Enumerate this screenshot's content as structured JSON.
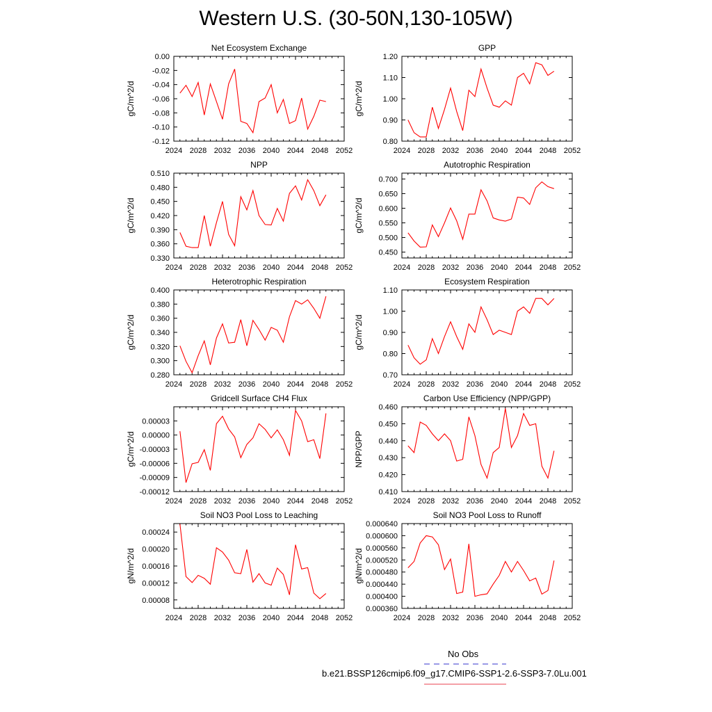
{
  "title": "Western U.S. (30-50N,130-105W)",
  "chart_data": [
    {
      "type": "line",
      "title": "Net Ecosystem Exchange",
      "ylabel": "gC/m^2/d",
      "xlim": [
        2024,
        2052
      ],
      "ylim": [
        -0.12,
        0.0
      ],
      "xticks": [
        "2024",
        "2028",
        "2032",
        "2036",
        "2040",
        "2044",
        "2048",
        "2052"
      ],
      "yticks": [
        "-0.12",
        "-0.10",
        "-0.08",
        "-0.06",
        "-0.04",
        "-0.02",
        "0.00"
      ],
      "x": [
        2025,
        2026,
        2027,
        2028,
        2029,
        2030,
        2031,
        2032,
        2033,
        2034,
        2035,
        2036,
        2037,
        2038,
        2039,
        2040,
        2041,
        2042,
        2043,
        2044,
        2045,
        2046,
        2047,
        2048,
        2049
      ],
      "series": [
        {
          "values": [
            -0.052,
            -0.041,
            -0.057,
            -0.037,
            -0.083,
            -0.039,
            -0.064,
            -0.089,
            -0.039,
            -0.018,
            -0.092,
            -0.095,
            -0.108,
            -0.064,
            -0.059,
            -0.04,
            -0.08,
            -0.061,
            -0.095,
            -0.091,
            -0.059,
            -0.103,
            -0.085,
            -0.062,
            -0.064
          ]
        }
      ]
    },
    {
      "type": "line",
      "title": "GPP",
      "ylabel": "gC/m^2/d",
      "xlim": [
        2024,
        2052
      ],
      "ylim": [
        0.8,
        1.2
      ],
      "xticks": [
        "2024",
        "2028",
        "2032",
        "2036",
        "2040",
        "2044",
        "2048",
        "2052"
      ],
      "yticks": [
        "0.80",
        "0.90",
        "1.00",
        "1.10",
        "1.20"
      ],
      "x": [
        2025,
        2026,
        2027,
        2028,
        2029,
        2030,
        2031,
        2032,
        2033,
        2034,
        2035,
        2036,
        2037,
        2038,
        2039,
        2040,
        2041,
        2042,
        2043,
        2044,
        2045,
        2046,
        2047,
        2048,
        2049
      ],
      "series": [
        {
          "values": [
            0.9,
            0.84,
            0.82,
            0.82,
            0.96,
            0.86,
            0.95,
            1.05,
            0.94,
            0.85,
            1.04,
            1.01,
            1.14,
            1.05,
            0.97,
            0.96,
            0.99,
            0.97,
            1.1,
            1.12,
            1.07,
            1.17,
            1.16,
            1.11,
            1.13
          ]
        }
      ]
    },
    {
      "type": "line",
      "title": "NPP",
      "ylabel": "gC/m^2/d",
      "xlim": [
        2024,
        2052
      ],
      "ylim": [
        0.33,
        0.51
      ],
      "xticks": [
        "2024",
        "2028",
        "2032",
        "2036",
        "2040",
        "2044",
        "2048",
        "2052"
      ],
      "yticks": [
        "0.330",
        "0.360",
        "0.390",
        "0.420",
        "0.450",
        "0.480",
        "0.510"
      ],
      "x": [
        2025,
        2026,
        2027,
        2028,
        2029,
        2030,
        2031,
        2032,
        2033,
        2034,
        2035,
        2036,
        2037,
        2038,
        2039,
        2040,
        2041,
        2042,
        2043,
        2044,
        2045,
        2046,
        2047,
        2048,
        2049
      ],
      "series": [
        {
          "values": [
            0.384,
            0.355,
            0.352,
            0.352,
            0.42,
            0.355,
            0.405,
            0.45,
            0.38,
            0.356,
            0.46,
            0.432,
            0.473,
            0.42,
            0.401,
            0.4,
            0.435,
            0.408,
            0.467,
            0.483,
            0.453,
            0.496,
            0.473,
            0.441,
            0.464
          ]
        }
      ]
    },
    {
      "type": "line",
      "title": "Autotrophic Respiration",
      "ylabel": "gC/m^2/d",
      "xlim": [
        2024,
        2052
      ],
      "ylim": [
        0.43,
        0.72
      ],
      "xticks": [
        "2024",
        "2028",
        "2032",
        "2036",
        "2040",
        "2044",
        "2048",
        "2052"
      ],
      "yticks": [
        "0.450",
        "0.500",
        "0.550",
        "0.600",
        "0.650",
        "0.700"
      ],
      "x": [
        2025,
        2026,
        2027,
        2028,
        2029,
        2030,
        2031,
        2032,
        2033,
        2034,
        2035,
        2036,
        2037,
        2038,
        2039,
        2040,
        2041,
        2042,
        2043,
        2044,
        2045,
        2046,
        2047,
        2048,
        2049
      ],
      "series": [
        {
          "values": [
            0.516,
            0.488,
            0.467,
            0.468,
            0.543,
            0.503,
            0.55,
            0.601,
            0.557,
            0.494,
            0.58,
            0.58,
            0.663,
            0.625,
            0.567,
            0.56,
            0.556,
            0.563,
            0.638,
            0.635,
            0.613,
            0.67,
            0.69,
            0.674,
            0.667
          ]
        }
      ]
    },
    {
      "type": "line",
      "title": "Heterotrophic Respiration",
      "ylabel": "gC/m^2/d",
      "xlim": [
        2024,
        2052
      ],
      "ylim": [
        0.28,
        0.4
      ],
      "xticks": [
        "2024",
        "2028",
        "2032",
        "2036",
        "2040",
        "2044",
        "2048",
        "2052"
      ],
      "yticks": [
        "0.280",
        "0.300",
        "0.320",
        "0.340",
        "0.360",
        "0.380",
        "0.400"
      ],
      "x": [
        2025,
        2026,
        2027,
        2028,
        2029,
        2030,
        2031,
        2032,
        2033,
        2034,
        2035,
        2036,
        2037,
        2038,
        2039,
        2040,
        2041,
        2042,
        2043,
        2044,
        2045,
        2046,
        2047,
        2048,
        2049
      ],
      "series": [
        {
          "values": [
            0.321,
            0.299,
            0.283,
            0.307,
            0.328,
            0.294,
            0.332,
            0.352,
            0.325,
            0.326,
            0.358,
            0.321,
            0.357,
            0.344,
            0.329,
            0.347,
            0.343,
            0.326,
            0.362,
            0.385,
            0.38,
            0.386,
            0.374,
            0.36,
            0.391
          ]
        }
      ]
    },
    {
      "type": "line",
      "title": "Ecosystem Respiration",
      "ylabel": "gC/m^2/d",
      "xlim": [
        2024,
        2052
      ],
      "ylim": [
        0.7,
        1.1
      ],
      "xticks": [
        "2024",
        "2028",
        "2032",
        "2036",
        "2040",
        "2044",
        "2048",
        "2052"
      ],
      "yticks": [
        "0.70",
        "0.80",
        "0.90",
        "1.00",
        "1.10"
      ],
      "x": [
        2025,
        2026,
        2027,
        2028,
        2029,
        2030,
        2031,
        2032,
        2033,
        2034,
        2035,
        2036,
        2037,
        2038,
        2039,
        2040,
        2041,
        2042,
        2043,
        2044,
        2045,
        2046,
        2047,
        2048,
        2049
      ],
      "series": [
        {
          "values": [
            0.84,
            0.78,
            0.75,
            0.77,
            0.87,
            0.8,
            0.88,
            0.95,
            0.88,
            0.82,
            0.94,
            0.9,
            1.02,
            0.96,
            0.89,
            0.91,
            0.9,
            0.89,
            1.0,
            1.02,
            0.99,
            1.06,
            1.06,
            1.03,
            1.06
          ]
        }
      ]
    },
    {
      "type": "line",
      "title": "Gridcell Surface CH4 Flux",
      "ylabel": "gC/m^2/d",
      "xlim": [
        2024,
        2052
      ],
      "ylim": [
        -0.00012,
        6e-05
      ],
      "xticks": [
        "2024",
        "2028",
        "2032",
        "2036",
        "2040",
        "2044",
        "2048",
        "2052"
      ],
      "yticks": [
        "-0.00012",
        "-0.00009",
        "-0.00006",
        "-0.00003",
        "0.00000",
        "0.00003"
      ],
      "x": [
        2025,
        2026,
        2027,
        2028,
        2029,
        2030,
        2031,
        2032,
        2033,
        2034,
        2035,
        2036,
        2037,
        2038,
        2039,
        2040,
        2041,
        2042,
        2043,
        2044,
        2045,
        2046,
        2047,
        2048,
        2049
      ],
      "series": [
        {
          "values": [
            8e-06,
            -0.000101,
            -6.1e-05,
            -5.8e-05,
            -3.1e-05,
            -7.5e-05,
            2.4e-05,
            4e-05,
            1.3e-05,
            -4e-06,
            -4.8e-05,
            -2e-05,
            -6e-06,
            2.4e-05,
            1.2e-05,
            -6e-06,
            1.1e-05,
            -1e-05,
            -4.3e-05,
            5.2e-05,
            3e-05,
            -1.4e-05,
            -1e-05,
            -5e-05,
            4.6e-05
          ]
        }
      ]
    },
    {
      "type": "line",
      "title": "Carbon Use Efficiency (NPP/GPP)",
      "ylabel": "NPP/GPP",
      "xlim": [
        2024,
        2052
      ],
      "ylim": [
        0.41,
        0.46
      ],
      "xticks": [
        "2024",
        "2028",
        "2032",
        "2036",
        "2040",
        "2044",
        "2048",
        "2052"
      ],
      "yticks": [
        "0.410",
        "0.420",
        "0.430",
        "0.440",
        "0.450",
        "0.460"
      ],
      "x": [
        2025,
        2026,
        2027,
        2028,
        2029,
        2030,
        2031,
        2032,
        2033,
        2034,
        2035,
        2036,
        2037,
        2038,
        2039,
        2040,
        2041,
        2042,
        2043,
        2044,
        2045,
        2046,
        2047,
        2048,
        2049
      ],
      "series": [
        {
          "values": [
            0.437,
            0.433,
            0.451,
            0.449,
            0.444,
            0.44,
            0.444,
            0.44,
            0.428,
            0.429,
            0.454,
            0.443,
            0.426,
            0.418,
            0.433,
            0.436,
            0.459,
            0.436,
            0.443,
            0.456,
            0.449,
            0.45,
            0.425,
            0.418,
            0.434
          ]
        }
      ]
    },
    {
      "type": "line",
      "title": "Soil NO3 Pool Loss to Leaching",
      "ylabel": "gN/m^2/d",
      "xlim": [
        2024,
        2052
      ],
      "ylim": [
        6e-05,
        0.00026
      ],
      "xticks": [
        "2024",
        "2028",
        "2032",
        "2036",
        "2040",
        "2044",
        "2048",
        "2052"
      ],
      "yticks": [
        "0.00008",
        "0.00012",
        "0.00016",
        "0.00020",
        "0.00024"
      ],
      "x": [
        2025,
        2026,
        2027,
        2028,
        2029,
        2030,
        2031,
        2032,
        2033,
        2034,
        2035,
        2036,
        2037,
        2038,
        2039,
        2040,
        2041,
        2042,
        2043,
        2044,
        2045,
        2046,
        2047,
        2048,
        2049
      ],
      "series": [
        {
          "values": [
            0.000259,
            0.000135,
            0.000121,
            0.000138,
            0.000131,
            0.000117,
            0.000203,
            0.000193,
            0.000174,
            0.000144,
            0.000142,
            0.000199,
            0.000122,
            0.000142,
            0.00012,
            0.000115,
            0.000155,
            0.00014,
            9.2e-05,
            0.00021,
            0.000153,
            0.000156,
            9.6e-05,
            8.3e-05,
            9.5e-05
          ]
        }
      ]
    },
    {
      "type": "line",
      "title": "Soil NO3 Pool Loss to Runoff",
      "ylabel": "gN/m^2/d",
      "xlim": [
        2024,
        2052
      ],
      "ylim": [
        0.00036,
        0.00064
      ],
      "xticks": [
        "2024",
        "2028",
        "2032",
        "2036",
        "2040",
        "2044",
        "2048",
        "2052"
      ],
      "yticks": [
        "0.000360",
        "0.000400",
        "0.000440",
        "0.000480",
        "0.000520",
        "0.000560",
        "0.000600",
        "0.000640"
      ],
      "x": [
        2025,
        2026,
        2027,
        2028,
        2029,
        2030,
        2031,
        2032,
        2033,
        2034,
        2035,
        2036,
        2037,
        2038,
        2039,
        2040,
        2041,
        2042,
        2043,
        2044,
        2045,
        2046,
        2047,
        2048,
        2049
      ],
      "series": [
        {
          "values": [
            0.000494,
            0.000515,
            0.000576,
            0.0006,
            0.000596,
            0.00057,
            0.000488,
            0.000523,
            0.000409,
            0.000414,
            0.000573,
            0.0004,
            0.000405,
            0.000408,
            0.00044,
            0.000469,
            0.000515,
            0.00048,
            0.000515,
            0.000485,
            0.000451,
            0.00046,
            0.000407,
            0.000419,
            0.000518
          ]
        }
      ]
    }
  ],
  "legend": [
    {
      "label": "No Obs",
      "color": "#3333cc",
      "dash": "dash"
    },
    {
      "label": "b.e21.BSSP126cmip6.f09_g17.CMIP6-SSP1-2.6-SSP3-7.0Lu.001",
      "color": "#e8414f",
      "dash": "solid"
    }
  ],
  "colors": {
    "series": "#ff0000",
    "axes": "#000000"
  }
}
